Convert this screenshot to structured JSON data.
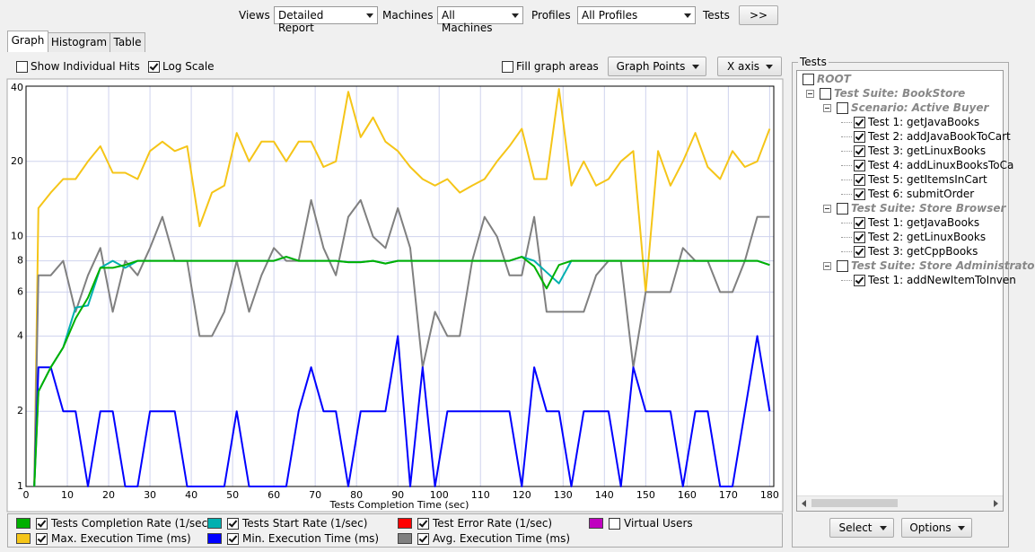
{
  "toolbar": {
    "views_label": "Views",
    "views": "Detailed Report",
    "machines_label": "Machines",
    "machines": "All Machines",
    "profiles_label": "Profiles",
    "profiles": "All Profiles",
    "tests_label": "Tests",
    "tests_button": ">>"
  },
  "tabs": [
    "Graph",
    "Histogram",
    "Table"
  ],
  "options": {
    "show_individual_hits": {
      "label": "Show Individual Hits",
      "checked": false
    },
    "log_scale": {
      "label": "Log Scale",
      "checked": true
    },
    "fill_graph_areas": {
      "label": "Fill graph areas",
      "checked": false
    },
    "graph_points": "Graph Points",
    "x_axis": "X axis"
  },
  "chart_data": {
    "type": "line",
    "x_label": "Tests Completion Time (sec)",
    "log_scale": true,
    "grid": true,
    "xlim": [
      0,
      181
    ],
    "xticks": [
      0,
      10,
      20,
      30,
      40,
      50,
      60,
      70,
      80,
      90,
      100,
      110,
      120,
      130,
      140,
      150,
      160,
      170,
      180
    ],
    "ylim": [
      1,
      40
    ],
    "yticks": [
      1,
      2,
      4,
      6,
      8,
      10,
      20,
      40
    ],
    "x": [
      2,
      3,
      6,
      9,
      12,
      15,
      18,
      21,
      24,
      27,
      30,
      33,
      36,
      39,
      42,
      45,
      48,
      51,
      54,
      57,
      60,
      63,
      66,
      69,
      72,
      75,
      78,
      81,
      84,
      87,
      90,
      93,
      96,
      99,
      102,
      105,
      108,
      111,
      114,
      117,
      120,
      123,
      126,
      129,
      132,
      135,
      138,
      141,
      144,
      147,
      150,
      153,
      156,
      159,
      162,
      165,
      168,
      171,
      174,
      177,
      180
    ],
    "series": [
      {
        "name": "Tests Completion Rate (1/sec)",
        "color": "#00b000",
        "checked": true,
        "values": [
          1,
          2.4,
          3,
          3.6,
          4.7,
          5.7,
          7.5,
          7.5,
          7.7,
          8,
          8,
          8,
          8,
          8,
          8,
          8,
          8,
          8,
          8,
          8,
          8,
          8.3,
          8,
          8,
          8,
          8,
          7.9,
          7.9,
          8,
          7.8,
          8,
          8,
          8,
          8,
          8,
          8,
          8,
          8,
          8,
          8,
          8.3,
          7.6,
          6.2,
          7.7,
          8,
          8,
          8,
          8,
          8,
          8,
          8,
          8,
          8,
          8,
          8,
          8,
          8,
          8,
          8,
          8,
          7.7
        ]
      },
      {
        "name": "Tests Start Rate (1/sec)",
        "color": "#00b0b0",
        "checked": true,
        "values": [
          1,
          2.4,
          3,
          3.6,
          5.2,
          5.3,
          7.5,
          8,
          7.5,
          8,
          8,
          8,
          8,
          8,
          8,
          8,
          8,
          8,
          8,
          8,
          8,
          8.3,
          8,
          8,
          8,
          8,
          7.9,
          7.9,
          8,
          7.8,
          8,
          8,
          8,
          8,
          8,
          8,
          8,
          8,
          8,
          8,
          8.3,
          8,
          7.2,
          6.5,
          8,
          8,
          8,
          8,
          8,
          8,
          8,
          8,
          8,
          8,
          8,
          8,
          8,
          8,
          8,
          8,
          7.7
        ]
      },
      {
        "name": "Test Error Rate (1/sec)",
        "color": "#ff0000",
        "checked": true
      },
      {
        "name": "Virtual Users",
        "color": "#c000c0",
        "checked": false
      },
      {
        "name": "Max. Execution Time (ms)",
        "color": "#f5c518",
        "checked": true,
        "values": [
          1,
          13,
          15,
          17,
          17,
          20,
          23,
          18,
          18,
          17,
          22,
          24,
          22,
          23,
          11,
          15,
          16,
          26,
          20,
          24,
          24,
          20,
          24,
          24,
          19,
          20,
          38,
          25,
          30,
          24,
          22,
          19,
          17,
          16,
          17,
          15,
          16,
          17,
          20,
          23,
          27,
          17,
          17,
          39,
          16,
          20,
          16,
          17,
          20,
          22,
          6,
          22,
          16,
          20,
          26,
          19,
          17,
          22,
          19,
          20,
          27
        ]
      },
      {
        "name": "Min. Execution Time (ms)",
        "color": "#0000ff",
        "checked": true,
        "values": [
          1,
          3,
          3,
          2,
          2,
          1,
          2,
          2,
          1,
          1,
          2,
          2,
          2,
          1,
          1,
          1,
          1,
          2,
          1,
          1,
          1,
          1,
          2,
          3,
          2,
          2,
          1,
          2,
          2,
          2,
          4,
          1,
          3,
          1,
          2,
          2,
          2,
          2,
          2,
          2,
          1,
          3,
          2,
          2,
          1,
          2,
          2,
          2,
          1,
          3,
          2,
          2,
          2,
          1,
          2,
          2,
          1,
          1,
          2,
          4,
          2
        ]
      },
      {
        "name": "Avg. Execution Time (ms)",
        "color": "#808080",
        "checked": true,
        "values": [
          1,
          7,
          7,
          8,
          5,
          7,
          9,
          5,
          8,
          7,
          9,
          12,
          8,
          8,
          4,
          4,
          5,
          8,
          5,
          7,
          9,
          8,
          8,
          14,
          9,
          7,
          12,
          14,
          10,
          9,
          13,
          9,
          3,
          5,
          4,
          4,
          8,
          12,
          10,
          7,
          7,
          12,
          5,
          5,
          5,
          5,
          7,
          8,
          8,
          3,
          6,
          6,
          6,
          9,
          8,
          8,
          6,
          6,
          8,
          12,
          12
        ]
      }
    ]
  },
  "tree": {
    "title": "Tests",
    "items": [
      {
        "label": "ROOT",
        "level": 0,
        "checked": false
      },
      {
        "label": "Test Suite: BookStore",
        "level": 1,
        "checked": false
      },
      {
        "label": "Scenario: Active Buyer",
        "level": 2,
        "checked": false
      },
      {
        "label": "Test 1: getJavaBooks",
        "level": 3,
        "checked": true
      },
      {
        "label": "Test 2: addJavaBookToCart",
        "level": 3,
        "checked": true
      },
      {
        "label": "Test 3: getLinuxBooks",
        "level": 3,
        "checked": true
      },
      {
        "label": "Test 4: addLinuxBooksToCa",
        "level": 3,
        "checked": true
      },
      {
        "label": "Test 5: getItemsInCart",
        "level": 3,
        "checked": true
      },
      {
        "label": "Test 6: submitOrder",
        "level": 3,
        "checked": true
      },
      {
        "label": "Test Suite: Store Browser",
        "level": 2,
        "checked": false
      },
      {
        "label": "Test 1: getJavaBooks",
        "level": 3,
        "checked": true
      },
      {
        "label": "Test 2: getLinuxBooks",
        "level": 3,
        "checked": true
      },
      {
        "label": "Test 3: getCppBooks",
        "level": 3,
        "checked": true
      },
      {
        "label": "Test Suite: Store Administrato",
        "level": 2,
        "checked": false
      },
      {
        "label": "Test 1: addNewItemToInven",
        "level": 3,
        "checked": true
      }
    ]
  },
  "buttons": [
    "Select",
    "Options"
  ]
}
